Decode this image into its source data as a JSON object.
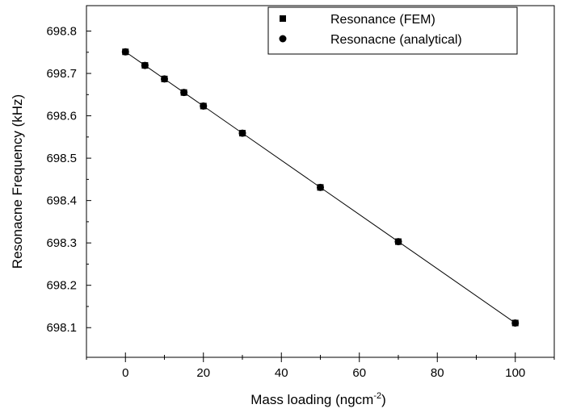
{
  "chart_data": {
    "type": "scatter",
    "title": "",
    "xlabel": "Mass loading (ngcm",
    "xlabel_superscript": "-2",
    "xlabel_suffix": ")",
    "ylabel": "Resonacne Frequency (kHz)",
    "xlim": [
      -10,
      110
    ],
    "ylim": [
      698.03,
      698.86
    ],
    "xticks": [
      0,
      20,
      40,
      60,
      80,
      100
    ],
    "yticks": [
      698.1,
      698.2,
      698.3,
      698.4,
      698.5,
      698.6,
      698.7,
      698.8
    ],
    "ytick_labels": [
      "698.1",
      "698.2",
      "698.3",
      "698.4",
      "698.5",
      "698.6",
      "698.7",
      "698.8"
    ],
    "grid": false,
    "legend": {
      "placement": "top-right"
    },
    "series": [
      {
        "name": "Resonance (FEM)",
        "marker": "square",
        "color": "#000000",
        "x": [
          0,
          5,
          10,
          15,
          20,
          30,
          50,
          70,
          100
        ],
        "y": [
          698.751,
          698.719,
          698.687,
          698.655,
          698.623,
          698.559,
          698.431,
          698.303,
          698.111
        ]
      },
      {
        "name": "Resonacne (analytical)",
        "marker": "circle",
        "color": "#000000",
        "line": true,
        "x": [
          0,
          5,
          10,
          15,
          20,
          30,
          50,
          70,
          100
        ],
        "y": [
          698.751,
          698.719,
          698.687,
          698.655,
          698.623,
          698.559,
          698.431,
          698.303,
          698.111
        ]
      }
    ]
  }
}
